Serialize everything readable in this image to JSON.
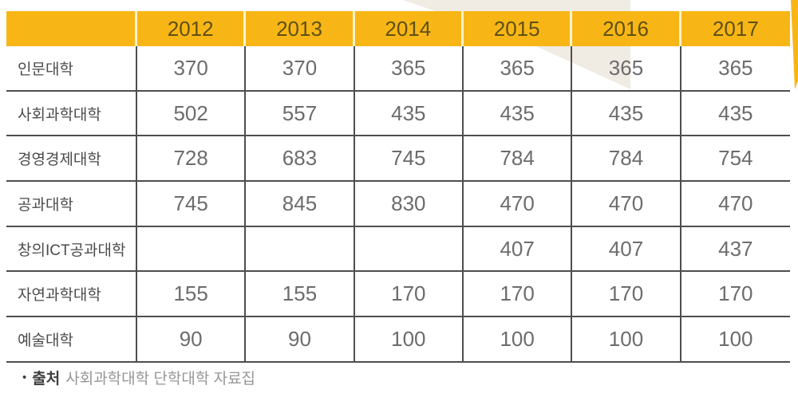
{
  "table": {
    "corner_label": "",
    "years": [
      "2012",
      "2013",
      "2014",
      "2015",
      "2016",
      "2017"
    ],
    "rows": [
      {
        "label": "인문대학",
        "values": [
          "370",
          "370",
          "365",
          "365",
          "365",
          "365"
        ]
      },
      {
        "label": "사회과학대학",
        "values": [
          "502",
          "557",
          "435",
          "435",
          "435",
          "435"
        ]
      },
      {
        "label": "경영경제대학",
        "values": [
          "728",
          "683",
          "745",
          "784",
          "784",
          "754"
        ]
      },
      {
        "label": "공과대학",
        "values": [
          "745",
          "845",
          "830",
          "470",
          "470",
          "470"
        ]
      },
      {
        "label": "창의ICT공과대학",
        "values": [
          "",
          "",
          "",
          "407",
          "407",
          "437"
        ]
      },
      {
        "label": "자연과학대학",
        "values": [
          "155",
          "155",
          "170",
          "170",
          "170",
          "170"
        ]
      },
      {
        "label": "예술대학",
        "values": [
          "90",
          "90",
          "100",
          "100",
          "100",
          "100"
        ]
      }
    ]
  },
  "footer": {
    "bullet": "•",
    "source_label": "출처",
    "source_text": "사회과학대학 단학대학 자료집"
  },
  "colors": {
    "header_yellow": "#F8B616",
    "header_text": "#5E5014",
    "watermark_beige": "#F0EBE3",
    "border_gray": "#4E4E4E",
    "value_text": "#6C6C6C",
    "label_text": "#4B4B4B"
  }
}
